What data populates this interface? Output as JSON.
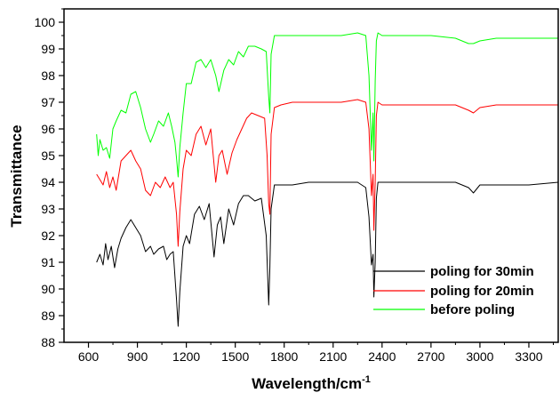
{
  "chart_data": {
    "type": "line",
    "title": "",
    "xlabel": "Wavelength/cm",
    "xlabel_sup": "-1",
    "ylabel": "Transmittance",
    "xlim": [
      450,
      3480
    ],
    "ylim": [
      88,
      100.5
    ],
    "xticks": [
      600,
      900,
      1200,
      1500,
      1800,
      2100,
      2400,
      2700,
      3000,
      3300
    ],
    "yticks": [
      88,
      89,
      90,
      91,
      92,
      93,
      94,
      95,
      96,
      97,
      98,
      99,
      100
    ],
    "grid": false,
    "legend_position": "bottom-right",
    "series": [
      {
        "name": "poling for 30min",
        "color": "#000000",
        "x": [
          650,
          670,
          690,
          705,
          720,
          740,
          760,
          780,
          800,
          830,
          860,
          890,
          920,
          950,
          980,
          1000,
          1030,
          1060,
          1080,
          1100,
          1120,
          1140,
          1150,
          1160,
          1180,
          1200,
          1220,
          1250,
          1280,
          1310,
          1340,
          1370,
          1390,
          1410,
          1430,
          1460,
          1490,
          1520,
          1550,
          1580,
          1620,
          1660,
          1690,
          1705,
          1712,
          1720,
          1740,
          1780,
          1850,
          1950,
          2050,
          2150,
          2250,
          2300,
          2320,
          2335,
          2345,
          2350,
          2358,
          2365,
          2375,
          2400,
          2500,
          2700,
          2850,
          2930,
          2960,
          3000,
          3100,
          3300,
          3480
        ],
        "y": [
          91.0,
          91.3,
          90.9,
          91.7,
          91.1,
          91.6,
          90.8,
          91.5,
          91.9,
          92.3,
          92.6,
          92.3,
          92.0,
          91.4,
          91.6,
          91.3,
          91.5,
          91.6,
          91.1,
          91.3,
          91.4,
          89.6,
          88.6,
          89.9,
          91.6,
          92.0,
          91.7,
          92.8,
          93.1,
          92.6,
          93.2,
          91.2,
          92.4,
          92.7,
          91.7,
          93.0,
          92.4,
          93.2,
          93.5,
          93.5,
          93.3,
          93.4,
          92.0,
          89.4,
          90.8,
          93.0,
          93.9,
          93.9,
          93.9,
          94.0,
          94.0,
          94.0,
          94.0,
          93.8,
          92.7,
          90.9,
          91.3,
          89.7,
          91.0,
          93.4,
          94.0,
          94.0,
          94.0,
          94.0,
          94.0,
          93.8,
          93.6,
          93.9,
          93.9,
          93.9,
          94.0
        ]
      },
      {
        "name": "poling for 20min",
        "color": "#ff0000",
        "x": [
          650,
          670,
          690,
          710,
          730,
          750,
          770,
          800,
          830,
          860,
          890,
          920,
          950,
          980,
          1010,
          1040,
          1070,
          1100,
          1120,
          1140,
          1150,
          1160,
          1180,
          1200,
          1230,
          1260,
          1290,
          1320,
          1350,
          1380,
          1400,
          1420,
          1450,
          1480,
          1510,
          1540,
          1570,
          1600,
          1640,
          1680,
          1695,
          1705,
          1712,
          1720,
          1740,
          1780,
          1850,
          1950,
          2050,
          2150,
          2250,
          2300,
          2320,
          2335,
          2345,
          2350,
          2358,
          2365,
          2375,
          2400,
          2500,
          2700,
          2850,
          2930,
          2960,
          3000,
          3100,
          3300,
          3480
        ],
        "y": [
          94.3,
          94.1,
          93.9,
          94.4,
          93.8,
          94.2,
          93.7,
          94.8,
          95.0,
          95.2,
          94.8,
          94.5,
          93.7,
          93.5,
          94.0,
          93.8,
          94.2,
          93.8,
          94.0,
          92.8,
          91.6,
          92.9,
          94.5,
          95.2,
          95.0,
          95.8,
          96.1,
          95.4,
          96.0,
          94.0,
          95.0,
          95.2,
          94.3,
          95.1,
          95.6,
          96.0,
          96.4,
          96.6,
          96.5,
          96.4,
          95.0,
          93.2,
          92.8,
          95.8,
          96.8,
          96.9,
          97.0,
          97.0,
          97.0,
          97.0,
          97.1,
          97.0,
          96.0,
          93.5,
          94.3,
          92.2,
          94.0,
          96.5,
          97.0,
          96.9,
          96.9,
          96.9,
          96.9,
          96.7,
          96.6,
          96.8,
          96.9,
          96.9,
          96.9
        ]
      },
      {
        "name": "before poling",
        "color": "#00ff00",
        "x": [
          650,
          660,
          670,
          690,
          710,
          730,
          750,
          770,
          800,
          830,
          860,
          890,
          920,
          950,
          980,
          1000,
          1030,
          1060,
          1090,
          1110,
          1130,
          1140,
          1150,
          1160,
          1180,
          1200,
          1230,
          1260,
          1290,
          1320,
          1350,
          1380,
          1400,
          1430,
          1460,
          1490,
          1520,
          1550,
          1580,
          1620,
          1660,
          1690,
          1705,
          1712,
          1720,
          1740,
          1780,
          1850,
          1950,
          2050,
          2150,
          2250,
          2300,
          2320,
          2335,
          2345,
          2350,
          2358,
          2365,
          2375,
          2400,
          2500,
          2700,
          2850,
          2930,
          2960,
          3000,
          3100,
          3300,
          3480
        ],
        "y": [
          95.8,
          95.0,
          95.6,
          95.2,
          95.3,
          94.9,
          96.0,
          96.3,
          96.7,
          96.6,
          97.3,
          97.4,
          96.8,
          96.0,
          95.5,
          95.8,
          96.3,
          96.1,
          96.6,
          96.1,
          95.5,
          94.9,
          94.2,
          95.3,
          96.6,
          97.7,
          97.7,
          98.5,
          98.6,
          98.3,
          98.6,
          98.0,
          97.4,
          98.2,
          98.6,
          98.4,
          98.9,
          98.7,
          99.1,
          99.1,
          99.0,
          98.9,
          97.2,
          96.6,
          98.8,
          99.5,
          99.5,
          99.5,
          99.5,
          99.5,
          99.5,
          99.6,
          99.5,
          98.0,
          95.2,
          96.6,
          94.8,
          97.8,
          99.3,
          99.6,
          99.5,
          99.5,
          99.5,
          99.4,
          99.2,
          99.2,
          99.3,
          99.4,
          99.4,
          99.4
        ]
      }
    ]
  }
}
